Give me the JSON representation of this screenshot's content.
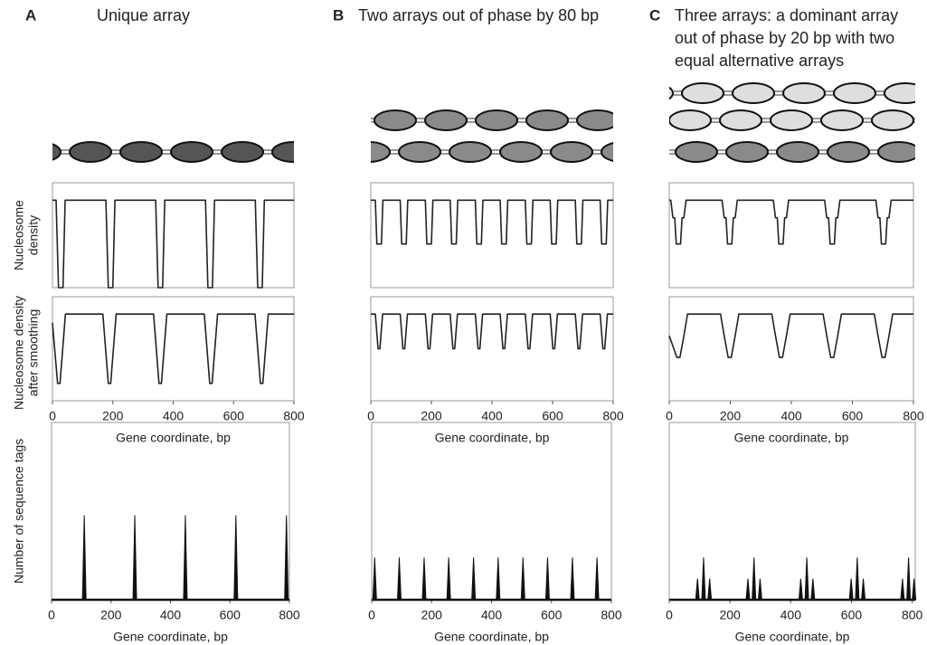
{
  "panels": [
    {
      "letter": "A",
      "title": [
        "Unique array"
      ]
    },
    {
      "letter": "B",
      "title": [
        "Two arrays out of phase by 80 bp"
      ]
    },
    {
      "letter": "C",
      "title": [
        "Three arrays: a dominant array",
        "out of phase by 20 bp with two",
        "equal alternative arrays"
      ]
    }
  ],
  "chart_data": [
    {
      "type": "line",
      "ylabel": [
        "Nucleosome",
        "density"
      ],
      "xlim": [
        0,
        800
      ],
      "ylim": [
        0,
        1.2
      ],
      "color": "#222",
      "x": [
        0,
        12,
        20,
        35,
        42,
        177,
        185,
        200,
        207,
        342,
        350,
        365,
        372,
        507,
        515,
        530,
        537,
        672,
        680,
        695,
        702,
        800
      ],
      "values": [
        1,
        1,
        0,
        0,
        1,
        1,
        0,
        0,
        1,
        1,
        0,
        0,
        1,
        1,
        0,
        0,
        1,
        1,
        0,
        0,
        1,
        1
      ]
    },
    {
      "type": "line",
      "ylabel": [
        "Nucleosome density",
        "after smoothing"
      ],
      "xlabel": "Gene coordinate, bp",
      "xlim": [
        0,
        800
      ],
      "xticks": [
        0,
        200,
        400,
        600,
        800
      ],
      "ylim": [
        0,
        1.2
      ],
      "color": "#222",
      "x": [
        0,
        17,
        25,
        43,
        167,
        185,
        193,
        211,
        335,
        353,
        361,
        379,
        503,
        521,
        529,
        547,
        671,
        689,
        697,
        715,
        800
      ],
      "values": [
        0.9,
        0.2,
        0.2,
        1,
        1,
        0.2,
        0.2,
        1,
        1,
        0.2,
        0.2,
        1,
        1,
        0.2,
        0.2,
        1,
        1,
        0.2,
        0.2,
        1,
        1
      ]
    },
    {
      "type": "spike",
      "ylabel": [
        "Number of sequence tags"
      ],
      "xlabel": "Gene coordinate, bp",
      "xlim": [
        0,
        800
      ],
      "xticks": [
        0,
        200,
        400,
        600,
        800
      ],
      "ylim": [
        0,
        2.1
      ],
      "color": "#111",
      "x": [
        110,
        280,
        450,
        620,
        790
      ],
      "values": [
        1,
        1,
        1,
        1,
        1
      ]
    },
    {
      "type": "line",
      "xlim": [
        0,
        800
      ],
      "ylim": [
        0,
        1.2
      ],
      "color": "#222",
      "x": [
        0,
        15,
        20,
        35,
        40,
        97,
        102,
        117,
        122,
        180,
        185,
        200,
        205,
        262,
        267,
        282,
        287,
        345,
        350,
        365,
        370,
        427,
        432,
        447,
        452,
        510,
        515,
        530,
        535,
        592,
        597,
        612,
        617,
        675,
        680,
        695,
        700,
        757,
        762,
        777,
        782,
        800
      ],
      "values": [
        1,
        1,
        0.5,
        0.5,
        1,
        1,
        0.5,
        0.5,
        1,
        1,
        0.5,
        0.5,
        1,
        1,
        0.5,
        0.5,
        1,
        1,
        0.5,
        0.5,
        1,
        1,
        0.5,
        0.5,
        1,
        1,
        0.5,
        0.5,
        1,
        1,
        0.5,
        0.5,
        1,
        1,
        0.5,
        0.5,
        1,
        1,
        0.5,
        0.5,
        1,
        1
      ]
    },
    {
      "type": "line",
      "xlabel": "Gene coordinate, bp",
      "xlim": [
        0,
        800
      ],
      "xticks": [
        0,
        200,
        400,
        600,
        800
      ],
      "ylim": [
        0,
        1.2
      ],
      "color": "#222",
      "x": [
        0,
        15,
        24,
        30,
        39,
        97,
        106,
        112,
        121,
        180,
        189,
        195,
        204,
        262,
        271,
        277,
        286,
        345,
        354,
        360,
        369,
        427,
        436,
        442,
        451,
        510,
        519,
        525,
        534,
        592,
        601,
        607,
        616,
        675,
        684,
        690,
        699,
        757,
        766,
        772,
        781,
        800
      ],
      "values": [
        1,
        1,
        0.6,
        0.6,
        1,
        1,
        0.6,
        0.6,
        1,
        1,
        0.6,
        0.6,
        1,
        1,
        0.6,
        0.6,
        1,
        1,
        0.6,
        0.6,
        1,
        1,
        0.6,
        0.6,
        1,
        1,
        0.6,
        0.6,
        1,
        1,
        0.6,
        0.6,
        1,
        1,
        0.6,
        0.6,
        1,
        1,
        0.6,
        0.6,
        1,
        1
      ]
    },
    {
      "type": "spike",
      "xlabel": "Gene coordinate, bp",
      "xlim": [
        0,
        800
      ],
      "xticks": [
        0,
        200,
        400,
        600,
        800
      ],
      "ylim": [
        0,
        2.1
      ],
      "color": "#111",
      "x": [
        10,
        92,
        175,
        257,
        340,
        422,
        505,
        587,
        670,
        752
      ],
      "values": [
        0.5,
        0.5,
        0.5,
        0.5,
        0.5,
        0.5,
        0.5,
        0.5,
        0.5,
        0.5
      ]
    },
    {
      "type": "line",
      "xlim": [
        0,
        800
      ],
      "ylim": [
        0,
        1.2
      ],
      "color": "#222",
      "x": [
        0,
        5,
        12,
        18,
        23,
        37,
        42,
        48,
        55,
        173,
        180,
        186,
        191,
        205,
        210,
        216,
        223,
        341,
        348,
        354,
        359,
        373,
        378,
        384,
        391,
        509,
        516,
        522,
        527,
        541,
        546,
        552,
        559,
        677,
        684,
        690,
        695,
        709,
        714,
        720,
        727,
        800
      ],
      "values": [
        1,
        1,
        0.8,
        0.8,
        0.5,
        0.5,
        0.8,
        0.8,
        1,
        1,
        0.8,
        0.8,
        0.5,
        0.5,
        0.8,
        0.8,
        1,
        1,
        0.8,
        0.8,
        0.5,
        0.5,
        0.8,
        0.8,
        1,
        1,
        0.8,
        0.8,
        0.5,
        0.5,
        0.8,
        0.8,
        1,
        1,
        0.8,
        0.8,
        0.5,
        0.5,
        0.8,
        0.8,
        1,
        1
      ]
    },
    {
      "type": "line",
      "xlabel": "Gene coordinate, bp",
      "xlim": [
        0,
        800
      ],
      "xticks": [
        0,
        200,
        400,
        600,
        800
      ],
      "ylim": [
        0,
        1.2
      ],
      "color": "#222",
      "x": [
        0,
        25,
        35,
        48,
        60,
        168,
        180,
        193,
        203,
        216,
        228,
        336,
        348,
        361,
        371,
        384,
        396,
        504,
        516,
        529,
        539,
        552,
        564,
        672,
        684,
        697,
        707,
        720,
        732,
        800
      ],
      "values": [
        0.75,
        0.5,
        0.5,
        0.75,
        1,
        1,
        0.75,
        0.5,
        0.5,
        0.75,
        1,
        1,
        0.75,
        0.5,
        0.5,
        0.75,
        1,
        1,
        0.75,
        0.5,
        0.5,
        0.75,
        1,
        1,
        0.75,
        0.5,
        0.5,
        0.75,
        1,
        1
      ]
    },
    {
      "type": "spike",
      "xlabel": "Gene coordinate, bp",
      "xlim": [
        0,
        810
      ],
      "xticks": [
        0,
        200,
        400,
        600,
        800
      ],
      "ylim": [
        0,
        2.1
      ],
      "color": "#111",
      "x": [
        93,
        113,
        133,
        259,
        279,
        299,
        433,
        453,
        473,
        599,
        619,
        639,
        768,
        788,
        806
      ],
      "values": [
        0.25,
        0.5,
        0.25,
        0.25,
        0.5,
        0.25,
        0.25,
        0.5,
        0.25,
        0.25,
        0.5,
        0.25,
        0.25,
        0.5,
        0.25
      ]
    }
  ]
}
